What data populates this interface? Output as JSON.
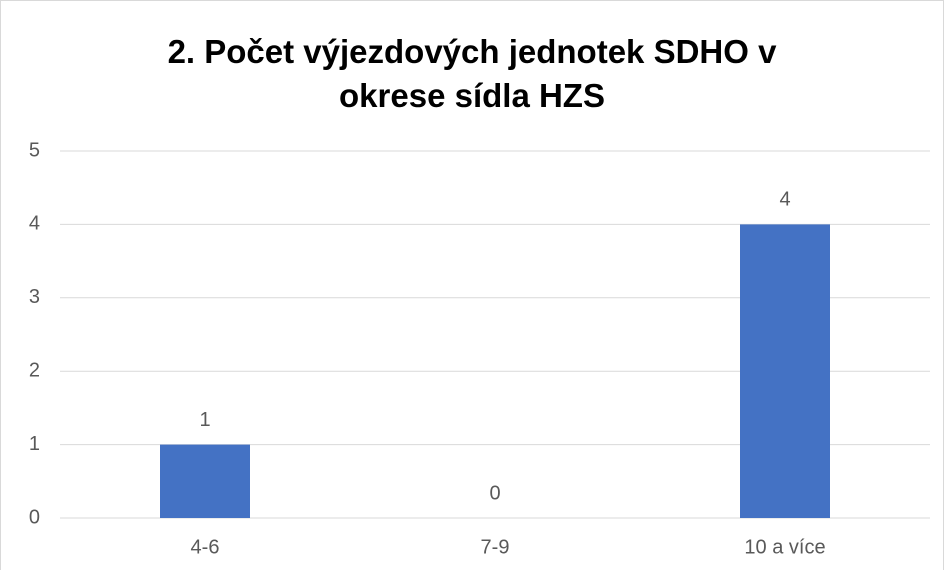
{
  "chart_data": {
    "type": "bar",
    "title": "2. Počet výjezdových jednotek SDHO v okrese sídla HZS",
    "categories": [
      "4-6",
      "7-9",
      "10 a více"
    ],
    "values": [
      1,
      0,
      4
    ],
    "color": "#4472c4",
    "ylim": [
      0,
      5
    ],
    "yticks": [
      0,
      1,
      2,
      3,
      4,
      5
    ],
    "grid": true
  }
}
